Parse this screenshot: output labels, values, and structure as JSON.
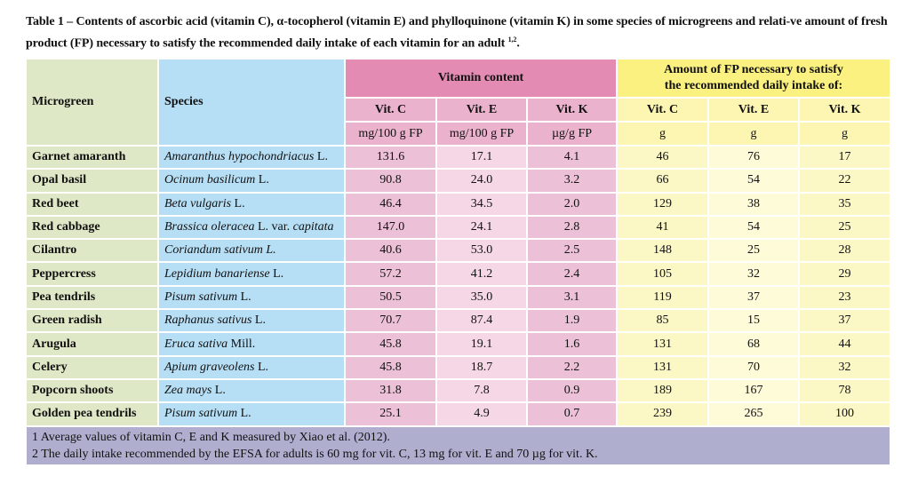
{
  "caption": {
    "text": "Table 1 – Contents of ascorbic acid (vitamin C), α-tocopherol (vitamin E) and phylloquinone (vitamin K) in some species of microgreens and relati-ve amount of fresh product (FP) necessary to satisfy the recommended daily intake of each vitamin for an adult",
    "sup": "1,2",
    "end": "."
  },
  "header": {
    "microgreen": "Microgreen",
    "species": "Species",
    "vitamin_content": "Vitamin content",
    "fp_amount": "Amount of FP necessary to satisfy the recommended daily intake of:",
    "cols": [
      "Vit. C",
      "Vit. E",
      "Vit. K",
      "Vit. C",
      "Vit. E",
      "Vit. K"
    ],
    "units": [
      "mg/100 g FP",
      "mg/100 g FP",
      "µg/g FP",
      "g",
      "g",
      "g"
    ]
  },
  "rows": [
    {
      "name": "Garnet amaranth",
      "species": [
        [
          "Amaranthus hypochondriacus",
          true
        ],
        [
          " L.",
          false
        ]
      ],
      "values": [
        "131.6",
        "17.1",
        "4.1",
        "46",
        "76",
        "17"
      ]
    },
    {
      "name": "Opal basil",
      "species": [
        [
          "Ocinum basilicum",
          true
        ],
        [
          " L.",
          false
        ]
      ],
      "values": [
        "90.8",
        "24.0",
        "3.2",
        "66",
        "54",
        "22"
      ]
    },
    {
      "name": "Red beet",
      "species": [
        [
          "Beta vulgaris",
          true
        ],
        [
          " L.",
          false
        ]
      ],
      "values": [
        "46.4",
        "34.5",
        "2.0",
        "129",
        "38",
        "35"
      ]
    },
    {
      "name": "Red cabbage",
      "species": [
        [
          "Brassica oleracea",
          true
        ],
        [
          " L. var. ",
          false
        ],
        [
          "capitata",
          true
        ]
      ],
      "values": [
        "147.0",
        "24.1",
        "2.8",
        "41",
        "54",
        "25"
      ]
    },
    {
      "name": "Cilantro",
      "species": [
        [
          "Coriandum sativum L.",
          true
        ]
      ],
      "values": [
        "40.6",
        "53.0",
        "2.5",
        "148",
        "25",
        "28"
      ]
    },
    {
      "name": "Peppercress",
      "species": [
        [
          "Lepidium banariense",
          true
        ],
        [
          " L.",
          false
        ]
      ],
      "values": [
        "57.2",
        "41.2",
        "2.4",
        "105",
        "32",
        "29"
      ]
    },
    {
      "name": "Pea tendrils",
      "species": [
        [
          "Pisum sativum",
          true
        ],
        [
          " L.",
          false
        ]
      ],
      "values": [
        "50.5",
        "35.0",
        "3.1",
        "119",
        "37",
        "23"
      ]
    },
    {
      "name": "Green radish",
      "species": [
        [
          "Raphanus sativus",
          true
        ],
        [
          " L.",
          false
        ]
      ],
      "values": [
        "70.7",
        "87.4",
        "1.9",
        "85",
        "15",
        "37"
      ]
    },
    {
      "name": "Arugula",
      "species": [
        [
          "Eruca sativa",
          true
        ],
        [
          " Mill.",
          false
        ]
      ],
      "values": [
        "45.8",
        "19.1",
        "1.6",
        "131",
        "68",
        "44"
      ]
    },
    {
      "name": "Celery",
      "species": [
        [
          "Apium graveolens",
          true
        ],
        [
          " L.",
          false
        ]
      ],
      "values": [
        "45.8",
        "18.7",
        "2.2",
        "131",
        "70",
        "32"
      ]
    },
    {
      "name": "Popcorn shoots",
      "species": [
        [
          "Zea mays",
          true
        ],
        [
          " L.",
          false
        ]
      ],
      "values": [
        "31.8",
        "7.8",
        "0.9",
        "189",
        "167",
        "78"
      ]
    },
    {
      "name": "Golden pea tendrils",
      "species": [
        [
          "Pisum sativum",
          true
        ],
        [
          " L.",
          false
        ]
      ],
      "values": [
        "25.1",
        "4.9",
        "0.7",
        "239",
        "265",
        "100"
      ]
    }
  ],
  "footnotes": [
    "1 Average values of vitamin C, E and K measured by Xiao et al. (2012).",
    "2 The daily intake recommended by the EFSA for adults is 60 mg for vit. C, 13 mg for vit. E and 70 µg for vit. K."
  ],
  "colors": {
    "green": "#dfe8c6",
    "blue": "#b6def5",
    "pink_header": "#e38bb3",
    "yellow_header": "#fbf181",
    "footer": "#b0aecf"
  }
}
